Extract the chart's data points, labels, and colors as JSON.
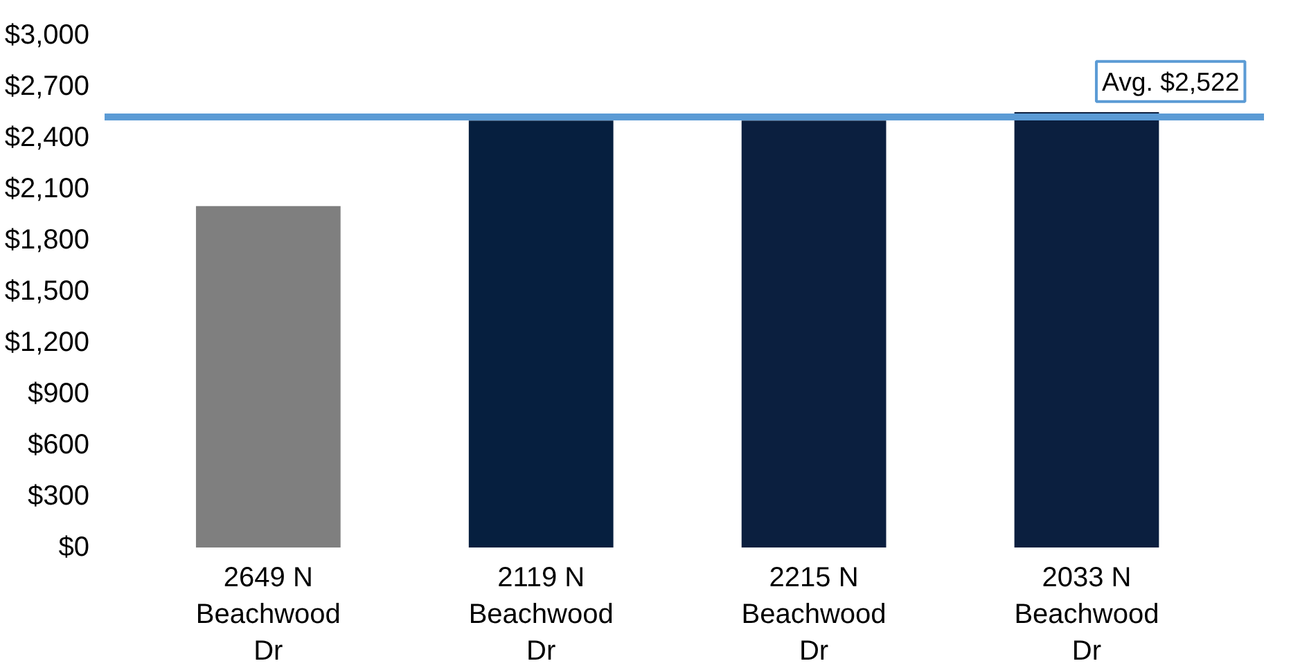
{
  "chart_data": {
    "type": "bar",
    "categories": [
      "2649 N Beachwood Dr",
      "2119 N Beachwood Dr",
      "2215 N Beachwood Dr",
      "2033 N Beachwood Dr"
    ],
    "values": [
      2000,
      2500,
      2500,
      2550
    ],
    "colors": [
      "#7f7f7f",
      "#061f3f",
      "#0b1f3f",
      "#0b1f3f"
    ],
    "ylim": [
      0,
      3000
    ],
    "yticks": [
      {
        "value": 0,
        "label": "$0"
      },
      {
        "value": 300,
        "label": "$300"
      },
      {
        "value": 600,
        "label": "$600"
      },
      {
        "value": 900,
        "label": "$900"
      },
      {
        "value": 1200,
        "label": "$1,200"
      },
      {
        "value": 1500,
        "label": "$1,500"
      },
      {
        "value": 1800,
        "label": "$1,800"
      },
      {
        "value": 2100,
        "label": "$2,100"
      },
      {
        "value": 2400,
        "label": "$2,400"
      },
      {
        "value": 2700,
        "label": "$2,700"
      },
      {
        "value": 3000,
        "label": "$3,000"
      }
    ],
    "ref_lines": [
      {
        "axis": "y",
        "value": 2522,
        "label": "Avg. $2,522",
        "color": "#5b9bd5"
      }
    ],
    "grid": false
  }
}
